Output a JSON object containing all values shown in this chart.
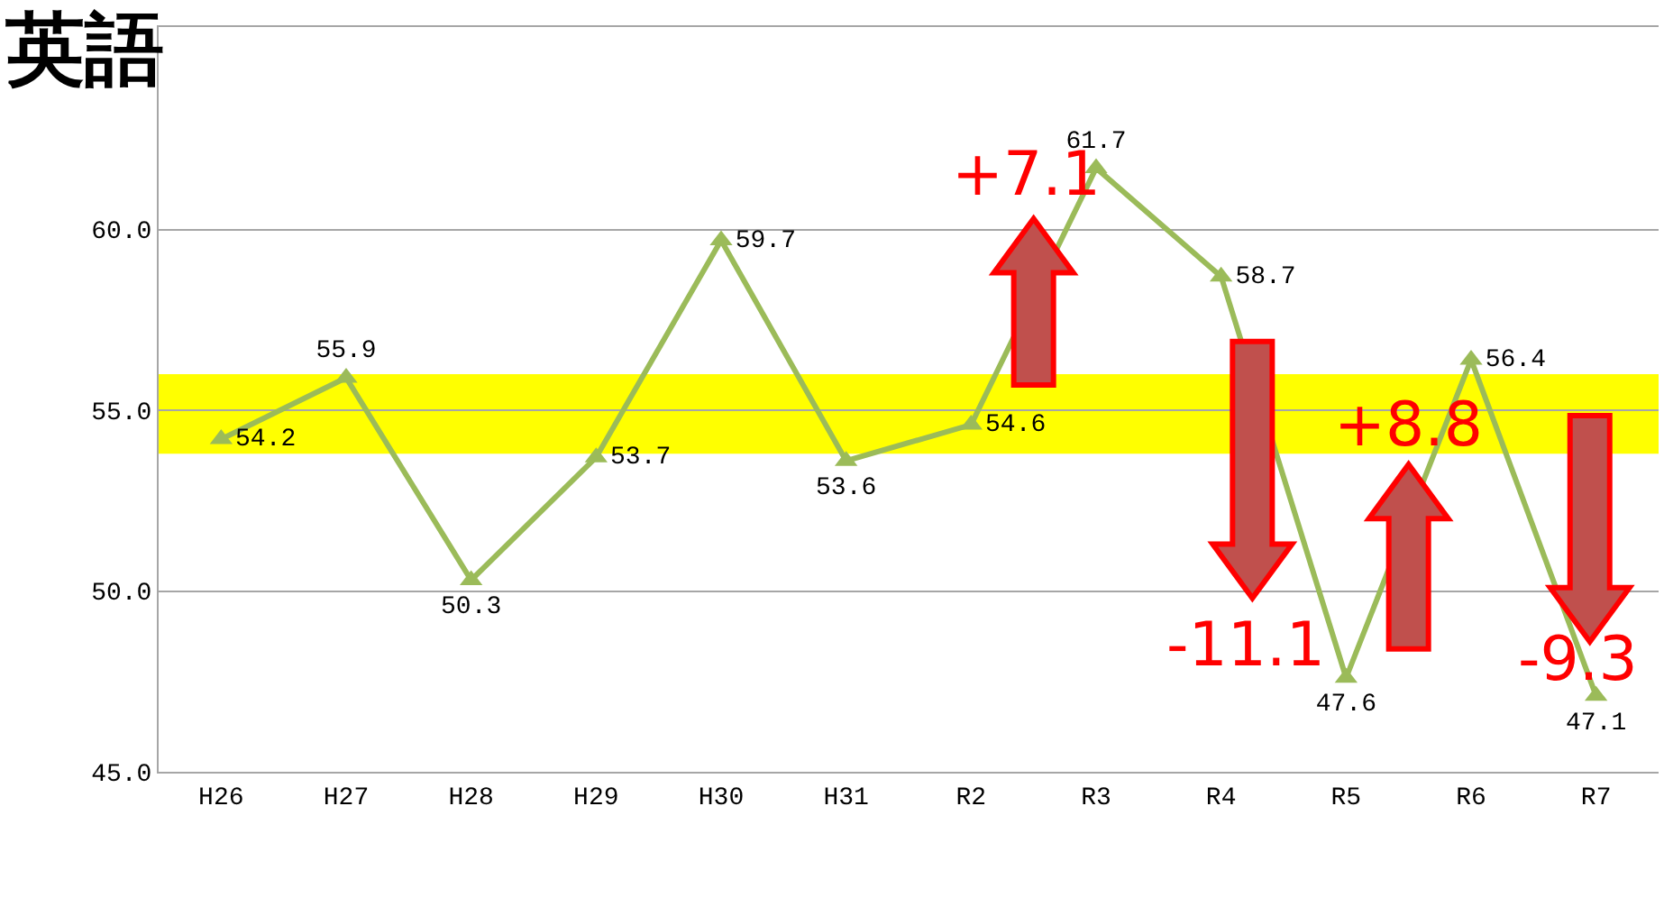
{
  "chart_data": {
    "type": "line",
    "title": "英語",
    "categories": [
      "H26",
      "H27",
      "H28",
      "H29",
      "H30",
      "H31",
      "R2",
      "R3",
      "R4",
      "R5",
      "R6",
      "R7"
    ],
    "series": [
      {
        "color": "#9bbb59",
        "values": [
          54.2,
          55.9,
          50.3,
          53.7,
          59.7,
          53.6,
          54.6,
          61.7,
          58.7,
          47.6,
          56.4,
          47.1
        ]
      }
    ],
    "marker": "triangle",
    "data_labels": true,
    "grid": "y",
    "ylim": [
      45,
      65.6
    ],
    "yticks": [
      {
        "value": 45,
        "label": "45.0"
      },
      {
        "value": 50,
        "label": "50.0"
      },
      {
        "value": 55,
        "label": "55.0"
      },
      {
        "value": 60,
        "label": "60.0"
      }
    ],
    "bands": [
      {
        "axis": "y",
        "from": 53.8,
        "to": 56.0,
        "color": "#ffff00"
      }
    ],
    "annotations": [
      "+7.1",
      "-11.1",
      "+8.8",
      "-9.3"
    ]
  }
}
